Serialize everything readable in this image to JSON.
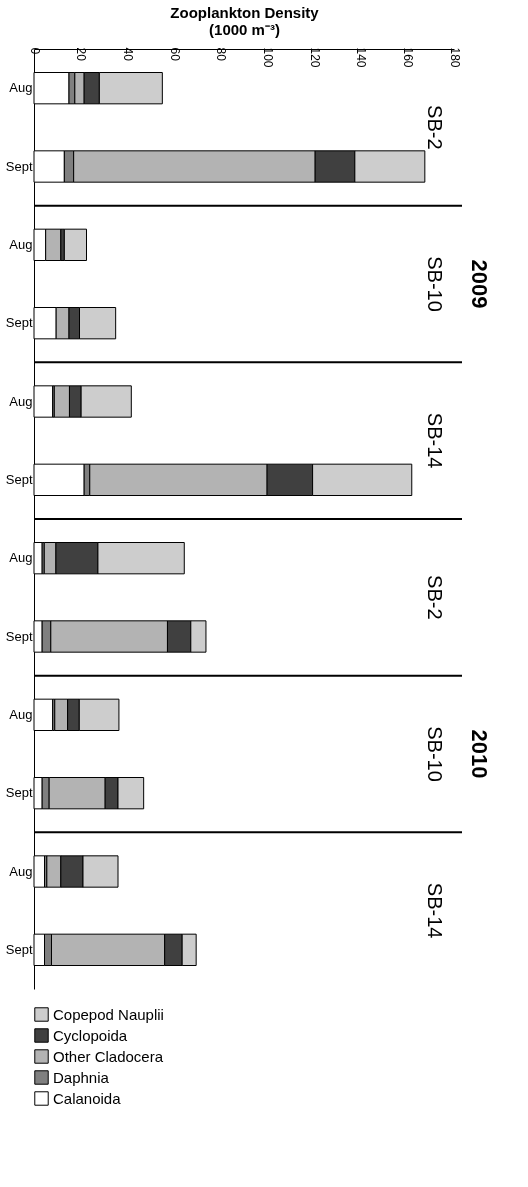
{
  "chart_data": {
    "type": "bar",
    "orientation": "horizontal",
    "stacked": true,
    "xlabel": "Zooplankton Density\n(1000 m⁻³)",
    "categories": [
      "Aug",
      "Sept",
      "Aug",
      "Sept",
      "Aug",
      "Sept",
      "Aug",
      "Sept",
      "Aug",
      "Sept",
      "Aug",
      "Sept"
    ],
    "series": [
      {
        "name": "Calanoida",
        "color": "#ffffff",
        "values": [
          15,
          13,
          5,
          9.5,
          8,
          21.5,
          3.5,
          3.5,
          8,
          3.5,
          4.5,
          4.5
        ]
      },
      {
        "name": "Daphnia",
        "color": "#7f7f7f",
        "values": [
          2.5,
          4,
          null,
          null,
          0.7,
          2.4,
          0.9,
          3.7,
          0.9,
          3,
          1,
          3
        ]
      },
      {
        "name": "Other Cladocera",
        "color": "#b3b3b3",
        "values": [
          4,
          103.5,
          6.5,
          5.5,
          6.5,
          76,
          5,
          50,
          5.5,
          24,
          6,
          48.5
        ]
      },
      {
        "name": "Cyclopoida",
        "color": "#404040",
        "values": [
          6.5,
          17,
          1.5,
          4.5,
          5,
          19.5,
          18,
          10,
          5,
          5.5,
          9.5,
          7.5
        ]
      },
      {
        "name": "Copepod Nauplii",
        "color": "#cdcdcd",
        "values": [
          27,
          30,
          9.5,
          15.5,
          21.5,
          42.5,
          37,
          6.5,
          17,
          11,
          15,
          6
        ]
      }
    ],
    "xlim": [
      0,
      180
    ],
    "xticks": [
      0,
      20,
      40,
      60,
      80,
      100,
      120,
      140,
      160,
      180
    ],
    "annotations": [
      "SB-2",
      "SB-10",
      "SB-14",
      "SB-2",
      "SB-10",
      "SB-14",
      "2009",
      "2010"
    ],
    "legend": "bottom",
    "grid": false
  }
}
